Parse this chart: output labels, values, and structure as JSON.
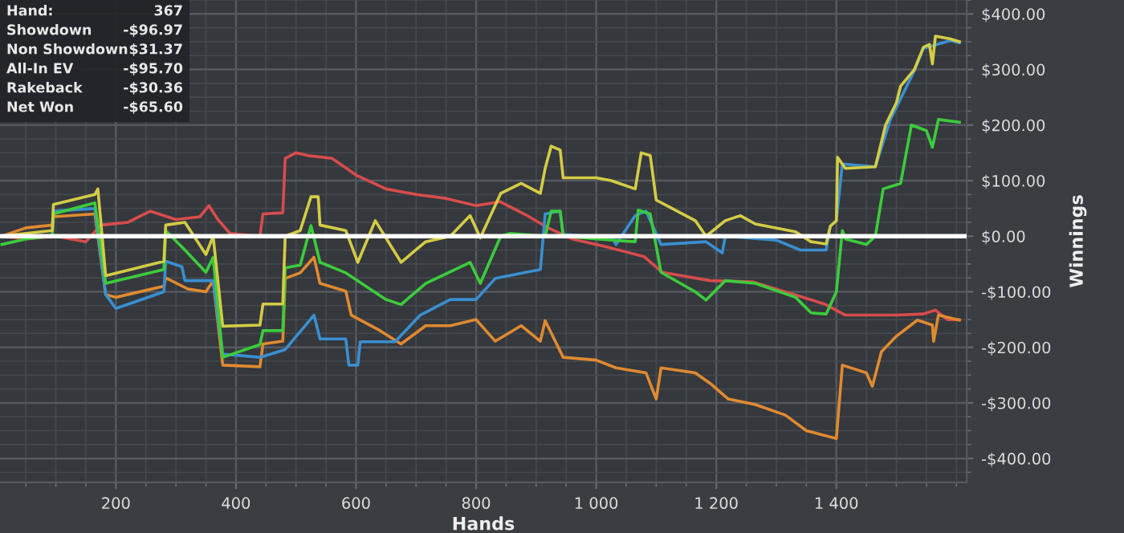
{
  "chart_data": {
    "type": "line",
    "xlabel": "Hands",
    "ylabel": "Winnings",
    "xlim": [
      7,
      1617
    ],
    "ylim": [
      -443,
      425
    ],
    "xticks": [
      200,
      400,
      600,
      800,
      {
        "value": 1000,
        "label": "1 000"
      },
      {
        "value": 1200,
        "label": "1 200"
      },
      {
        "value": 1400,
        "label": "1 400"
      }
    ],
    "yticks": [
      {
        "value": 400,
        "label": "$400.00"
      },
      {
        "value": 300,
        "label": "$300.00"
      },
      {
        "value": 200,
        "label": "$200.00"
      },
      {
        "value": 100,
        "label": "$100.00"
      },
      {
        "value": 0,
        "label": "$0.00"
      },
      {
        "value": -100,
        "label": "-$100.00"
      },
      {
        "value": -200,
        "label": "-$200.00"
      },
      {
        "value": -300,
        "label": "-$300.00"
      },
      {
        "value": -400,
        "label": "-$400.00"
      }
    ],
    "grid": true,
    "marker": "none",
    "line_style": "solid",
    "ref_lines": [
      {
        "axis": "y",
        "value": 0,
        "color": "#ffffff"
      }
    ],
    "annotations": [
      "Hand:",
      "367",
      "Showdown",
      "-$96.97",
      "Non Showdown",
      "$31.37",
      "All-In EV",
      "-$95.70",
      "Rakeback",
      "-$30.36",
      "Net Won",
      "-$65.60"
    ],
    "series": [
      {
        "color": "#d84c4c",
        "x": [
          10,
          50,
          100,
          150,
          175,
          220,
          257,
          300,
          340,
          355,
          370,
          390,
          440,
          445,
          478,
          482,
          500,
          520,
          560,
          600,
          650,
          700,
          750,
          800,
          840,
          880,
          920,
          960,
          1020,
          1080,
          1110,
          1190,
          1260,
          1330,
          1380,
          1415,
          1500,
          1545,
          1565,
          1585,
          1605
        ],
        "values": [
          0,
          -5,
          0,
          -10,
          20,
          25,
          45,
          30,
          35,
          55,
          30,
          5,
          0,
          40,
          42,
          140,
          150,
          145,
          140,
          110,
          85,
          75,
          68,
          55,
          62,
          40,
          15,
          -5,
          -20,
          -37,
          -65,
          -80,
          -82,
          -105,
          -122,
          -142,
          -142,
          -140,
          -133,
          -150,
          -150
        ]
      },
      {
        "color": "#e08a30",
        "x": [
          10,
          50,
          94,
          96,
          165,
          183,
          200,
          280,
          283,
          320,
          350,
          362,
          378,
          440,
          445,
          478,
          482,
          507,
          530,
          540,
          583,
          592,
          640,
          675,
          716,
          757,
          800,
          832,
          875,
          907,
          915,
          945,
          1000,
          1033,
          1083,
          1100,
          1108,
          1165,
          1190,
          1220,
          1265,
          1315,
          1350,
          1400,
          1410,
          1450,
          1460,
          1475,
          1500,
          1535,
          1560,
          1562,
          1570,
          1605
        ],
        "values": [
          0,
          15,
          20,
          35,
          40,
          -105,
          -110,
          -90,
          -75,
          -95,
          -100,
          -80,
          -232,
          -235,
          -194,
          -189,
          -76,
          -66,
          -38,
          -85,
          -99,
          -142,
          -170,
          -194,
          -161,
          -161,
          -150,
          -189,
          -161,
          -189,
          -152,
          -218,
          -223,
          -237,
          -246,
          -293,
          -237,
          -246,
          -265,
          -293,
          -303,
          -322,
          -350,
          -364,
          -232,
          -246,
          -270,
          -208,
          -180,
          -151,
          -160,
          -189,
          -142,
          -151
        ]
      },
      {
        "color": "#3a8fd0",
        "x": [
          10,
          94,
          96,
          165,
          183,
          200,
          280,
          283,
          310,
          315,
          362,
          378,
          440,
          482,
          530,
          540,
          583,
          588,
          603,
          607,
          665,
          707,
          757,
          800,
          832,
          907,
          915,
          940,
          945,
          990,
          1025,
          1033,
          1065,
          1083,
          1108,
          1183,
          1210,
          1215,
          1300,
          1340,
          1383,
          1390,
          1400,
          1410,
          1465,
          1490,
          1530,
          1545,
          1590,
          1605
        ],
        "values": [
          0,
          0,
          45,
          50,
          -105,
          -130,
          -100,
          -45,
          -55,
          -80,
          -80,
          -212,
          -218,
          -204,
          -142,
          -185,
          -185,
          -232,
          -232,
          -190,
          -190,
          -142,
          -114,
          -114,
          -76,
          -60,
          40,
          45,
          3,
          0,
          0,
          -15,
          37,
          45,
          -15,
          -10,
          -30,
          0,
          -7,
          -25,
          -25,
          18,
          28,
          130,
          125,
          210,
          298,
          338,
          352,
          348
        ]
      },
      {
        "color": "#3ccc3c",
        "x": [
          10,
          50,
          94,
          96,
          165,
          183,
          280,
          283,
          315,
          350,
          362,
          378,
          440,
          445,
          478,
          482,
          507,
          525,
          540,
          583,
          650,
          675,
          716,
          790,
          807,
          841,
          857,
          915,
          925,
          940,
          945,
          1000,
          1065,
          1070,
          1090,
          1108,
          1165,
          1183,
          1215,
          1265,
          1332,
          1358,
          1383,
          1400,
          1410,
          1415,
          1450,
          1465,
          1478,
          1507,
          1525,
          1550,
          1560,
          1570,
          1605
        ],
        "values": [
          -15,
          -5,
          0,
          40,
          60,
          -85,
          -60,
          10,
          -25,
          -65,
          -38,
          -218,
          -195,
          -170,
          -170,
          -57,
          -52,
          19,
          -47,
          -66,
          -114,
          -123,
          -85,
          -47,
          -85,
          0,
          5,
          0,
          45,
          45,
          0,
          -5,
          -10,
          47,
          40,
          -65,
          -100,
          -115,
          -80,
          -85,
          -110,
          -138,
          -140,
          -100,
          10,
          -5,
          -15,
          0,
          85,
          95,
          200,
          190,
          160,
          210,
          205
        ]
      },
      {
        "color": "#d4cc45",
        "x": [
          10,
          50,
          94,
          96,
          165,
          170,
          183,
          280,
          283,
          315,
          350,
          362,
          378,
          440,
          445,
          478,
          482,
          507,
          525,
          537,
          540,
          583,
          603,
          632,
          675,
          716,
          757,
          790,
          807,
          841,
          875,
          907,
          915,
          925,
          940,
          945,
          1000,
          1025,
          1065,
          1075,
          1090,
          1100,
          1165,
          1183,
          1215,
          1240,
          1265,
          1332,
          1358,
          1383,
          1390,
          1400,
          1402,
          1415,
          1465,
          1482,
          1500,
          1507,
          1530,
          1545,
          1555,
          1560,
          1565,
          1590,
          1605
        ],
        "values": [
          0,
          5,
          10,
          57,
          75,
          85,
          -71,
          -45,
          20,
          25,
          -33,
          0,
          -162,
          -160,
          -122,
          -122,
          0,
          10,
          71,
          71,
          20,
          10,
          -47,
          28,
          -47,
          -10,
          0,
          37,
          -3,
          77,
          95,
          77,
          122,
          162,
          155,
          105,
          105,
          100,
          85,
          150,
          145,
          65,
          28,
          0,
          28,
          37,
          22,
          8,
          -10,
          -14,
          18,
          28,
          142,
          122,
          125,
          200,
          240,
          270,
          300,
          340,
          345,
          310,
          360,
          355,
          350
        ]
      }
    ]
  }
}
